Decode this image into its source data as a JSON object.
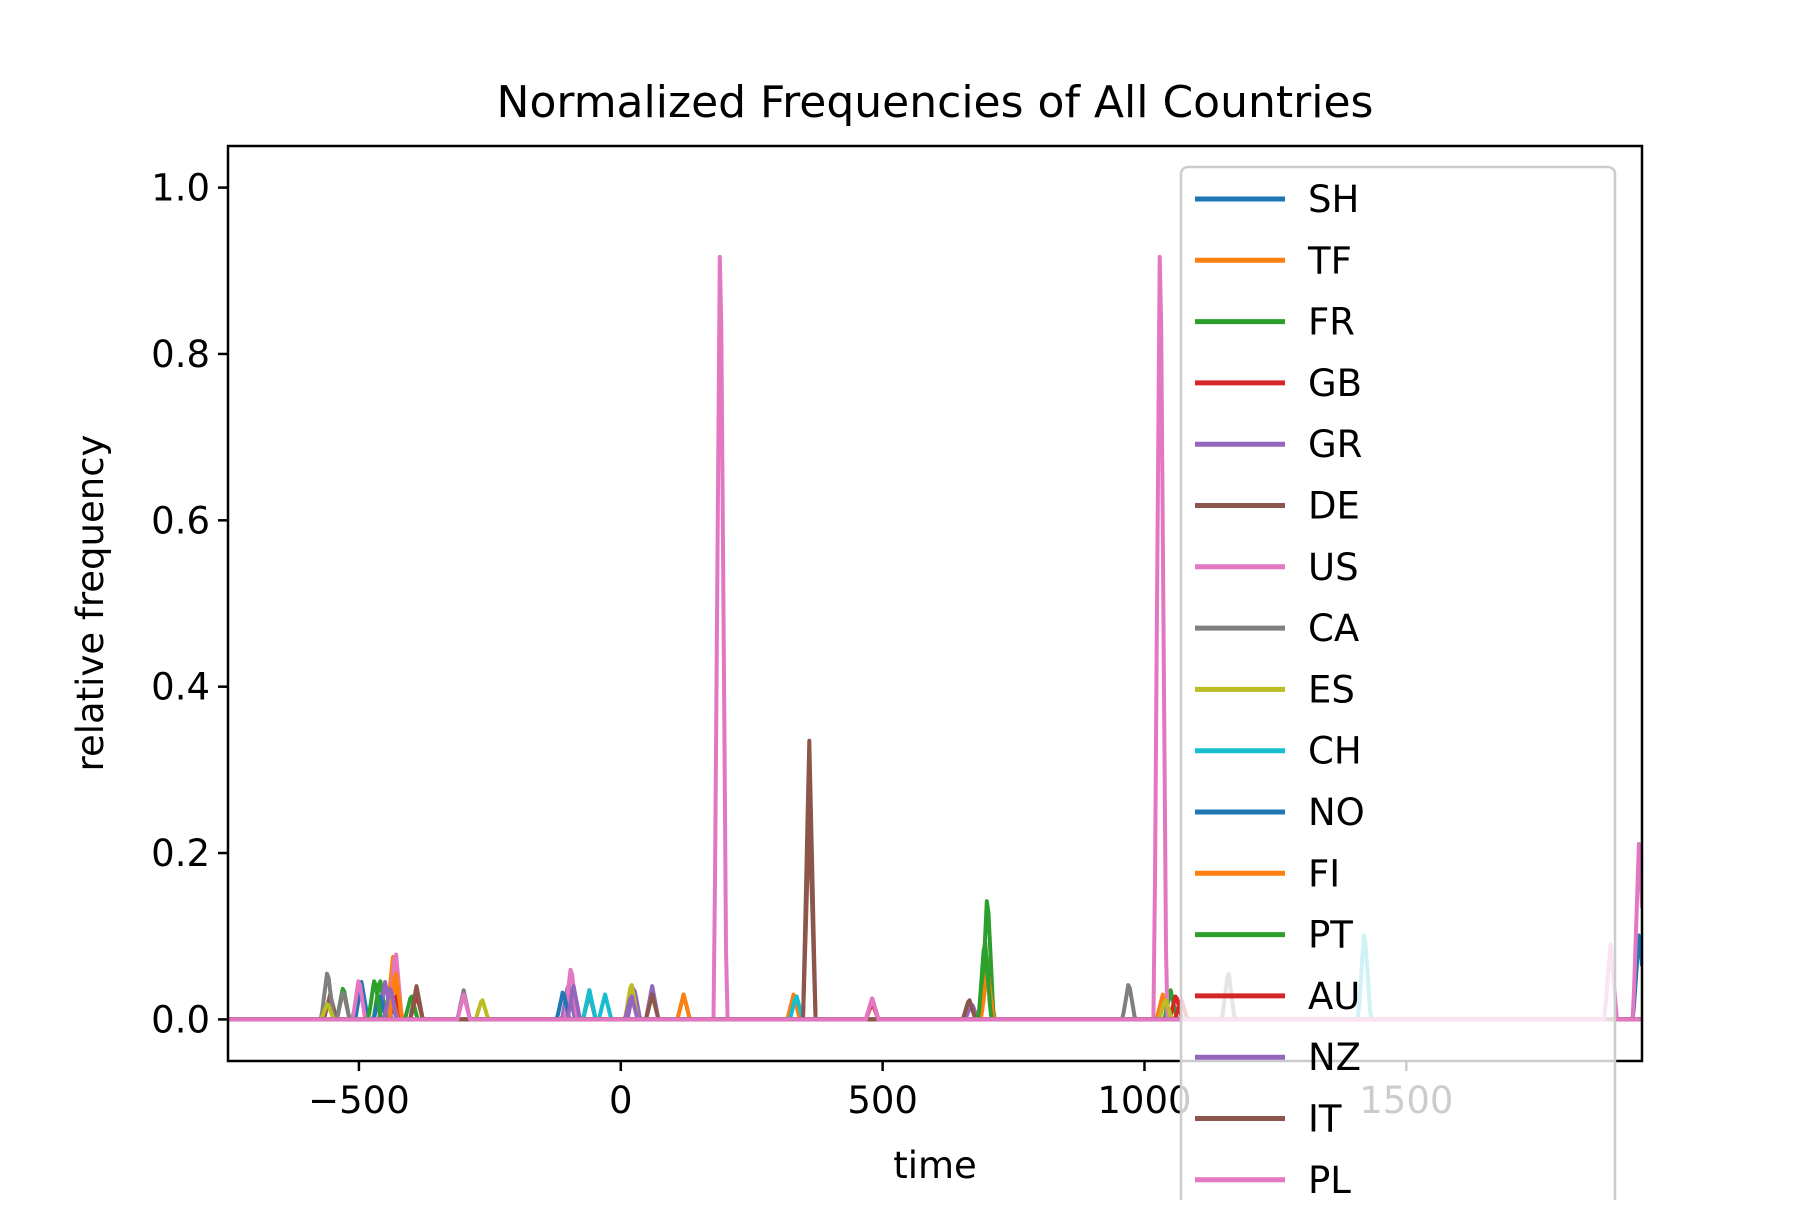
{
  "chart_data": {
    "type": "line",
    "title": "Normalized Frequencies of All Countries",
    "xlabel": "time",
    "ylabel": "relative frequency",
    "xlim": [
      -750,
      1950
    ],
    "ylim": [
      -0.05,
      1.05
    ],
    "xticks": [
      {
        "value": -500,
        "label": "−500"
      },
      {
        "value": 0,
        "label": "0"
      },
      {
        "value": 500,
        "label": "500"
      },
      {
        "value": 1000,
        "label": "1000"
      },
      {
        "value": 1500,
        "label": "1500"
      }
    ],
    "yticks": [
      {
        "value": 0.0,
        "label": "0.0"
      },
      {
        "value": 0.2,
        "label": "0.2"
      },
      {
        "value": 0.4,
        "label": "0.4"
      },
      {
        "value": 0.6,
        "label": "0.6"
      },
      {
        "value": 0.8,
        "label": "0.8"
      },
      {
        "value": 1.0,
        "label": "1.0"
      }
    ],
    "grid": false,
    "legend_position": "right",
    "series": [
      {
        "name": "SH",
        "color": "#1f77b4",
        "peaks": [
          [
            -495,
            0.045
          ],
          [
            -440,
            0.03
          ],
          [
            -60,
            0.035
          ],
          [
            1945,
            0.11
          ]
        ]
      },
      {
        "name": "TF",
        "color": "#ff7f0e",
        "peaks": [
          [
            -435,
            0.075
          ],
          [
            330,
            0.03
          ],
          [
            700,
            0.08
          ],
          [
            1035,
            0.03
          ]
        ]
      },
      {
        "name": "FR",
        "color": "#2ca02c",
        "peaks": [
          [
            -530,
            0.04
          ],
          [
            -460,
            0.05
          ],
          [
            700,
            0.155
          ],
          [
            1050,
            0.035
          ]
        ]
      },
      {
        "name": "GB",
        "color": "#d62728",
        "peaks": [
          [
            -430,
            0.03
          ],
          [
            480,
            0.02
          ],
          [
            1060,
            0.03
          ]
        ]
      },
      {
        "name": "GR",
        "color": "#9467bd",
        "peaks": [
          [
            -450,
            0.045
          ],
          [
            -100,
            0.045
          ],
          [
            25,
            0.04
          ],
          [
            60,
            0.04
          ],
          [
            670,
            0.02
          ]
        ]
      },
      {
        "name": "DE",
        "color": "#8c564b",
        "peaks": [
          [
            -555,
            0.03
          ],
          [
            -390,
            0.03
          ],
          [
            360,
            0.335
          ],
          [
            665,
            0.025
          ]
        ]
      },
      {
        "name": "US",
        "color": "#e377c2",
        "peaks": [
          [
            -500,
            0.05
          ],
          [
            -430,
            0.085
          ],
          [
            -95,
            0.065
          ],
          [
            190,
            1.0
          ],
          [
            1030,
            1.0
          ],
          [
            1945,
            0.23
          ]
        ]
      },
      {
        "name": "CA",
        "color": "#7f7f7f",
        "peaks": [
          [
            -560,
            0.06
          ],
          [
            -530,
            0.035
          ],
          [
            -300,
            0.035
          ],
          [
            -60,
            0.03
          ],
          [
            970,
            0.045
          ],
          [
            1160,
            0.06
          ]
        ]
      },
      {
        "name": "ES",
        "color": "#bcbd22",
        "peaks": [
          [
            -560,
            0.02
          ],
          [
            -265,
            0.025
          ],
          [
            20,
            0.045
          ],
          [
            1040,
            0.025
          ]
        ]
      },
      {
        "name": "CH",
        "color": "#17becf",
        "peaks": [
          [
            -60,
            0.035
          ],
          [
            -30,
            0.03
          ],
          [
            120,
            0.03
          ],
          [
            335,
            0.03
          ],
          [
            1420,
            0.11
          ]
        ]
      },
      {
        "name": "NO",
        "color": "#1f77b4",
        "peaks": [
          [
            -460,
            0.03
          ],
          [
            -110,
            0.035
          ]
        ]
      },
      {
        "name": "FI",
        "color": "#ff7f0e",
        "peaks": [
          [
            -430,
            0.06
          ],
          [
            120,
            0.03
          ],
          [
            700,
            0.06
          ]
        ]
      },
      {
        "name": "PT",
        "color": "#2ca02c",
        "peaks": [
          [
            -470,
            0.05
          ],
          [
            -400,
            0.03
          ],
          [
            695,
            0.1
          ]
        ]
      },
      {
        "name": "AU",
        "color": "#d62728",
        "peaks": [
          [
            -390,
            0.035
          ],
          [
            480,
            0.025
          ],
          [
            1070,
            0.025
          ]
        ]
      },
      {
        "name": "NZ",
        "color": "#9467bd",
        "peaks": [
          [
            -440,
            0.04
          ],
          [
            -90,
            0.04
          ],
          [
            20,
            0.03
          ]
        ]
      },
      {
        "name": "IT",
        "color": "#8c564b",
        "peaks": [
          [
            -390,
            0.04
          ],
          [
            60,
            0.03
          ],
          [
            360,
            0.25
          ]
        ]
      },
      {
        "name": "PL",
        "color": "#e377c2",
        "peaks": [
          [
            -300,
            0.03
          ],
          [
            480,
            0.025
          ],
          [
            1890,
            0.09
          ]
        ]
      }
    ]
  }
}
